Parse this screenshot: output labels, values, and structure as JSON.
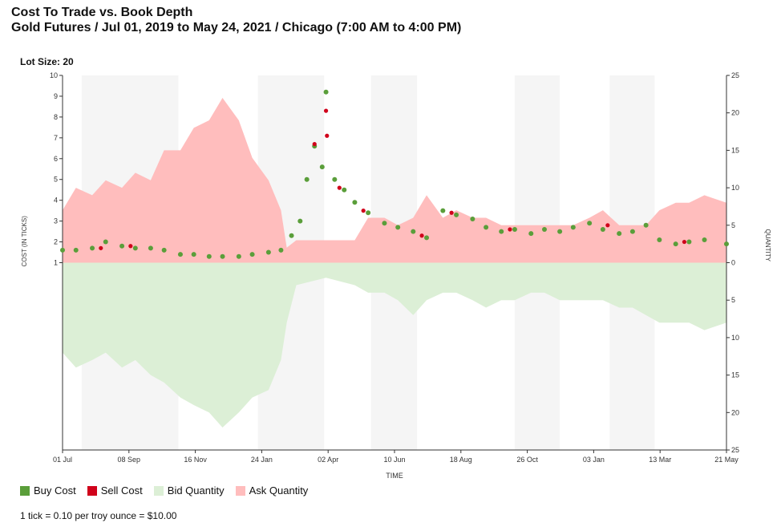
{
  "header": {
    "title": "Cost To Trade vs. Book Depth",
    "subtitle": "Gold Futures / Jul 01, 2019 to May 24, 2021 / Chicago (7:00 AM to 4:00 PM)",
    "lot_size": "Lot Size: 20"
  },
  "legend": {
    "items": [
      {
        "label": "Buy Cost",
        "color": "#5a9e3a"
      },
      {
        "label": "Sell Cost",
        "color": "#d0021b"
      },
      {
        "label": "Bid Quantity",
        "color": "#dcefd6"
      },
      {
        "label": "Ask Quantity",
        "color": "#ffbdbd"
      }
    ]
  },
  "footnote": "1 tick = 0.10 per troy ounce = $10.00",
  "chart_data": {
    "type": "area",
    "xlabel": "TIME",
    "ylabel_left": "COST (IN TICKS)",
    "ylabel_right": "QUANTITY",
    "left_ylim": [
      0,
      10
    ],
    "left_ticks": [
      "10",
      "9",
      "8",
      "7",
      "6",
      "5",
      "4",
      "3",
      "2",
      "1"
    ],
    "right_ylim": [
      -25,
      25
    ],
    "right_ticks": [
      "25",
      "20",
      "15",
      "10",
      "5",
      "0",
      "5",
      "10",
      "15",
      "20",
      "25"
    ],
    "x_tick_labels": [
      "01 Jul",
      "08 Sep",
      "16 Nov",
      "24 Jan",
      "02 Apr",
      "10 Jun",
      "18 Aug",
      "26 Oct",
      "03 Jan",
      "13 Mar",
      "21 May"
    ],
    "shaded_bands": [
      {
        "start": "2019-07-21",
        "end": "2019-10-30"
      },
      {
        "start": "2020-01-21",
        "end": "2020-03-30"
      },
      {
        "start": "2020-05-18",
        "end": "2020-07-05"
      },
      {
        "start": "2020-10-15",
        "end": "2020-12-01"
      },
      {
        "start": "2021-01-22",
        "end": "2021-03-10"
      }
    ],
    "series": [
      {
        "name": "Ask Quantity",
        "color": "#ffbdbd",
        "points": [
          [
            "2019-07-01",
            7
          ],
          [
            "2019-07-15",
            10
          ],
          [
            "2019-08-01",
            9
          ],
          [
            "2019-08-15",
            11
          ],
          [
            "2019-09-01",
            10
          ],
          [
            "2019-09-15",
            12
          ],
          [
            "2019-10-01",
            11
          ],
          [
            "2019-10-15",
            15
          ],
          [
            "2019-11-01",
            15
          ],
          [
            "2019-11-15",
            18
          ],
          [
            "2019-12-01",
            19
          ],
          [
            "2019-12-15",
            22
          ],
          [
            "2020-01-01",
            19
          ],
          [
            "2020-01-15",
            14
          ],
          [
            "2020-02-01",
            11
          ],
          [
            "2020-02-14",
            7
          ],
          [
            "2020-02-20",
            2
          ],
          [
            "2020-03-01",
            3
          ],
          [
            "2020-04-01",
            3
          ],
          [
            "2020-05-01",
            3
          ],
          [
            "2020-05-15",
            6
          ],
          [
            "2020-06-01",
            6
          ],
          [
            "2020-06-15",
            5
          ],
          [
            "2020-07-01",
            6
          ],
          [
            "2020-07-15",
            9
          ],
          [
            "2020-08-01",
            6
          ],
          [
            "2020-08-15",
            7
          ],
          [
            "2020-09-01",
            6
          ],
          [
            "2020-09-15",
            6
          ],
          [
            "2020-10-01",
            5
          ],
          [
            "2020-10-15",
            5
          ],
          [
            "2020-11-01",
            5
          ],
          [
            "2020-11-15",
            5
          ],
          [
            "2020-12-01",
            5
          ],
          [
            "2020-12-15",
            5
          ],
          [
            "2021-01-01",
            6
          ],
          [
            "2021-01-15",
            7
          ],
          [
            "2021-02-01",
            5
          ],
          [
            "2021-02-15",
            5
          ],
          [
            "2021-03-01",
            5
          ],
          [
            "2021-03-15",
            7
          ],
          [
            "2021-04-01",
            8
          ],
          [
            "2021-04-15",
            8
          ],
          [
            "2021-05-01",
            9
          ],
          [
            "2021-05-24",
            8
          ]
        ]
      },
      {
        "name": "Bid Quantity",
        "color": "#dcefd6",
        "points": [
          [
            "2019-07-01",
            -12
          ],
          [
            "2019-07-15",
            -14
          ],
          [
            "2019-08-01",
            -13
          ],
          [
            "2019-08-15",
            -12
          ],
          [
            "2019-09-01",
            -14
          ],
          [
            "2019-09-15",
            -13
          ],
          [
            "2019-10-01",
            -15
          ],
          [
            "2019-10-15",
            -16
          ],
          [
            "2019-11-01",
            -18
          ],
          [
            "2019-11-15",
            -19
          ],
          [
            "2019-12-01",
            -20
          ],
          [
            "2019-12-15",
            -22
          ],
          [
            "2020-01-01",
            -20
          ],
          [
            "2020-01-15",
            -18
          ],
          [
            "2020-02-01",
            -17
          ],
          [
            "2020-02-14",
            -13
          ],
          [
            "2020-02-20",
            -8
          ],
          [
            "2020-03-01",
            -3
          ],
          [
            "2020-04-01",
            -2
          ],
          [
            "2020-05-01",
            -3
          ],
          [
            "2020-05-15",
            -4
          ],
          [
            "2020-06-01",
            -4
          ],
          [
            "2020-06-15",
            -5
          ],
          [
            "2020-07-01",
            -7
          ],
          [
            "2020-07-15",
            -5
          ],
          [
            "2020-08-01",
            -4
          ],
          [
            "2020-08-15",
            -4
          ],
          [
            "2020-09-01",
            -5
          ],
          [
            "2020-09-15",
            -6
          ],
          [
            "2020-10-01",
            -5
          ],
          [
            "2020-10-15",
            -5
          ],
          [
            "2020-11-01",
            -4
          ],
          [
            "2020-11-15",
            -4
          ],
          [
            "2020-12-01",
            -5
          ],
          [
            "2020-12-15",
            -5
          ],
          [
            "2021-01-01",
            -5
          ],
          [
            "2021-01-15",
            -5
          ],
          [
            "2021-02-01",
            -6
          ],
          [
            "2021-02-15",
            -6
          ],
          [
            "2021-03-01",
            -7
          ],
          [
            "2021-03-15",
            -8
          ],
          [
            "2021-04-01",
            -8
          ],
          [
            "2021-04-15",
            -8
          ],
          [
            "2021-05-01",
            -9
          ],
          [
            "2021-05-24",
            -8
          ]
        ]
      },
      {
        "name": "Buy Cost",
        "color": "#5a9e3a",
        "points": [
          [
            "2019-07-01",
            1.6
          ],
          [
            "2019-07-15",
            1.6
          ],
          [
            "2019-08-01",
            1.7
          ],
          [
            "2019-08-15",
            2.0
          ],
          [
            "2019-09-01",
            1.8
          ],
          [
            "2019-09-15",
            1.7
          ],
          [
            "2019-10-01",
            1.7
          ],
          [
            "2019-10-15",
            1.6
          ],
          [
            "2019-11-01",
            1.4
          ],
          [
            "2019-11-15",
            1.4
          ],
          [
            "2019-12-01",
            1.3
          ],
          [
            "2019-12-15",
            1.3
          ],
          [
            "2020-01-01",
            1.3
          ],
          [
            "2020-01-15",
            1.4
          ],
          [
            "2020-02-01",
            1.5
          ],
          [
            "2020-02-14",
            1.6
          ],
          [
            "2020-02-25",
            2.3
          ],
          [
            "2020-03-05",
            3.0
          ],
          [
            "2020-03-12",
            5.0
          ],
          [
            "2020-03-20",
            6.6
          ],
          [
            "2020-03-28",
            5.6
          ],
          [
            "2020-04-01",
            9.2
          ],
          [
            "2020-04-10",
            5.0
          ],
          [
            "2020-04-20",
            4.5
          ],
          [
            "2020-05-01",
            3.9
          ],
          [
            "2020-05-15",
            3.4
          ],
          [
            "2020-06-01",
            2.9
          ],
          [
            "2020-06-15",
            2.7
          ],
          [
            "2020-07-01",
            2.5
          ],
          [
            "2020-07-15",
            2.2
          ],
          [
            "2020-08-01",
            3.5
          ],
          [
            "2020-08-15",
            3.3
          ],
          [
            "2020-09-01",
            3.1
          ],
          [
            "2020-09-15",
            2.7
          ],
          [
            "2020-10-01",
            2.5
          ],
          [
            "2020-10-15",
            2.6
          ],
          [
            "2020-11-01",
            2.4
          ],
          [
            "2020-11-15",
            2.6
          ],
          [
            "2020-12-01",
            2.5
          ],
          [
            "2020-12-15",
            2.7
          ],
          [
            "2021-01-01",
            2.9
          ],
          [
            "2021-01-15",
            2.6
          ],
          [
            "2021-02-01",
            2.4
          ],
          [
            "2021-02-15",
            2.5
          ],
          [
            "2021-03-01",
            2.8
          ],
          [
            "2021-03-15",
            2.1
          ],
          [
            "2021-04-01",
            1.9
          ],
          [
            "2021-04-15",
            2.0
          ],
          [
            "2021-05-01",
            2.1
          ],
          [
            "2021-05-24",
            1.9
          ]
        ]
      },
      {
        "name": "Sell Cost",
        "color": "#d0021b",
        "points": [
          [
            "2019-08-10",
            1.7
          ],
          [
            "2019-09-10",
            1.8
          ],
          [
            "2020-03-20",
            6.7
          ],
          [
            "2020-04-01",
            8.3
          ],
          [
            "2020-04-02",
            7.1
          ],
          [
            "2020-04-15",
            4.6
          ],
          [
            "2020-05-10",
            3.5
          ],
          [
            "2020-07-10",
            2.3
          ],
          [
            "2020-08-10",
            3.4
          ],
          [
            "2020-10-10",
            2.6
          ],
          [
            "2021-01-20",
            2.8
          ],
          [
            "2021-04-10",
            2.0
          ]
        ]
      }
    ]
  }
}
